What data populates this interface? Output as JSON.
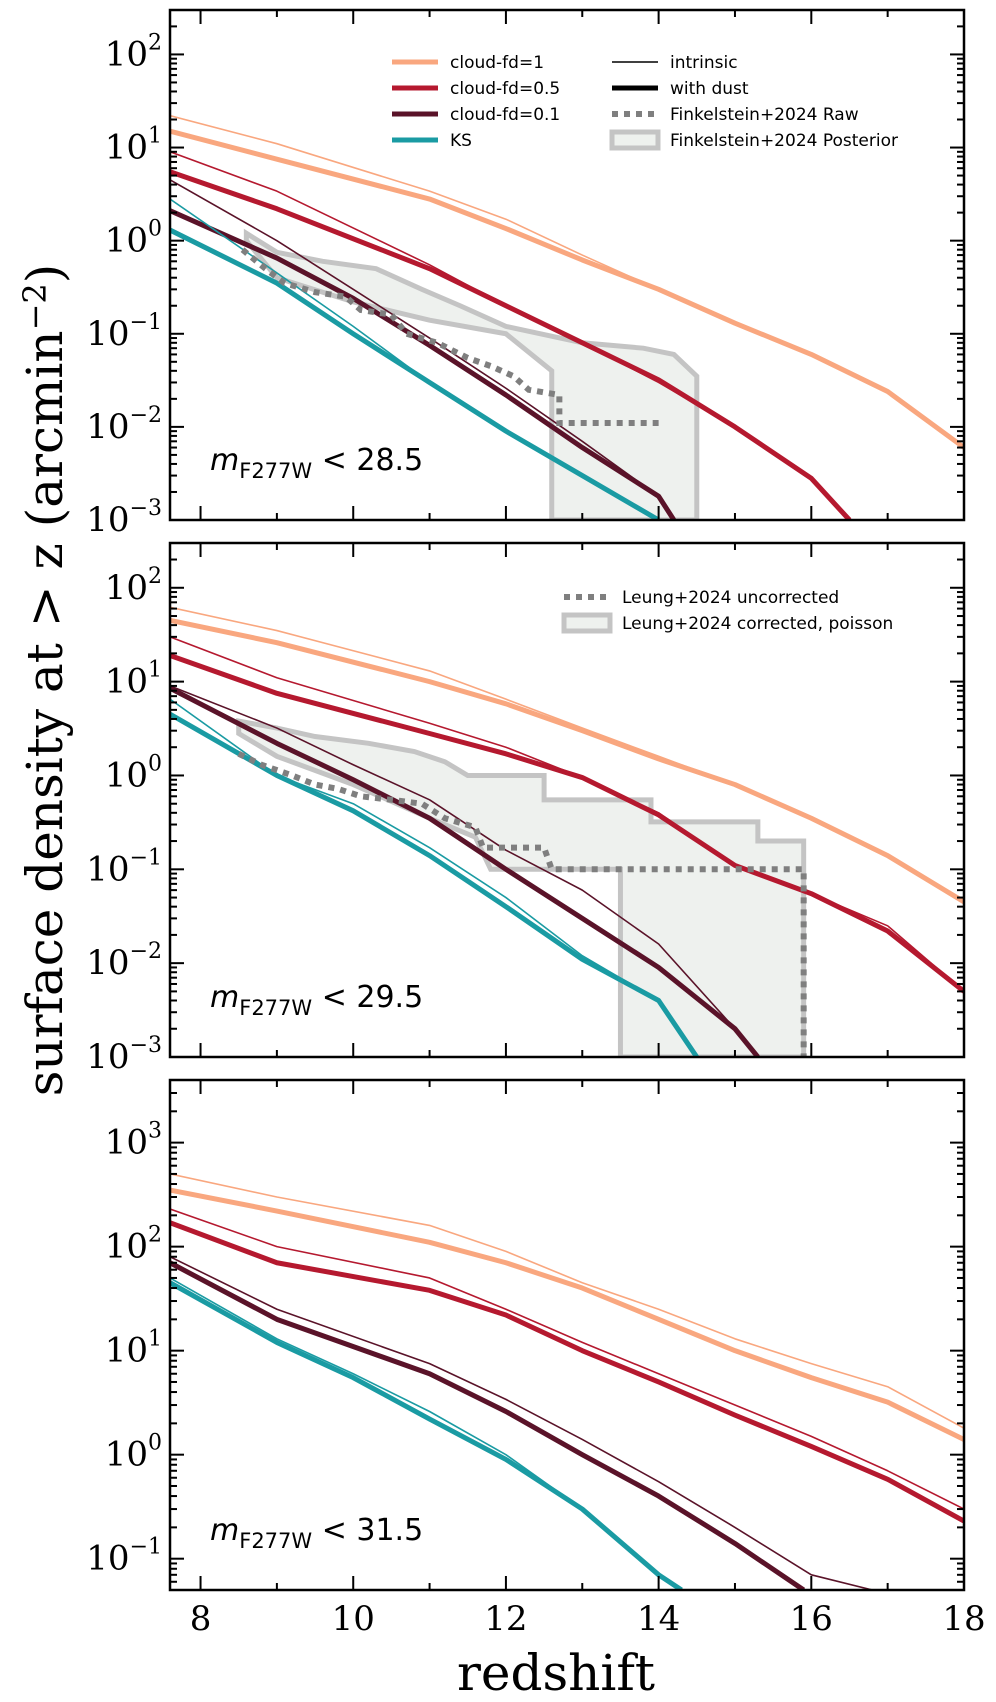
{
  "figure": {
    "xlabel": "redshift",
    "ylabel": "surface density at > z (arcmin",
    "ylabel_exp": "−2",
    "ylabel_end": ")"
  },
  "colors": {
    "cloud_fd_1": "#f9a77f",
    "cloud_fd_05": "#b5192f",
    "cloud_fd_01": "#5a1329",
    "ks": "#1a9ba3",
    "obs_dotted": "#7f7f7f",
    "obs_band_edge": "#c4c4c4",
    "obs_band_fill": "#eef1ee"
  },
  "legend": {
    "items": [
      {
        "label": "cloud-fd=1",
        "style": "thick",
        "color": "#f9a77f"
      },
      {
        "label": "cloud-fd=0.5",
        "style": "thick",
        "color": "#b5192f"
      },
      {
        "label": "cloud-fd=0.1",
        "style": "thick",
        "color": "#5a1329"
      },
      {
        "label": "KS",
        "style": "thick",
        "color": "#1a9ba3"
      },
      {
        "label": "intrinsic",
        "style": "thin",
        "color": "#000000"
      },
      {
        "label": "with dust",
        "style": "thick",
        "color": "#000000"
      },
      {
        "label": "Finkelstein+2024 Raw",
        "style": "dotted",
        "color": "#7f7f7f"
      },
      {
        "label": "Finkelstein+2024 Posterior",
        "style": "band",
        "color": "#c4c4c4"
      }
    ],
    "panel2": [
      {
        "label": "Leung+2024 uncorrected",
        "style": "dotted",
        "color": "#7f7f7f"
      },
      {
        "label": "Leung+2024 corrected, poisson",
        "style": "band",
        "color": "#c4c4c4"
      }
    ]
  },
  "chart_data": [
    {
      "type": "line",
      "panel": "top",
      "annotation": {
        "m": "m",
        "sub": "F277W",
        "rest": " < 28.5"
      },
      "xlim": [
        7.6,
        18
      ],
      "ylim": [
        0.001,
        300
      ],
      "yscale": "log",
      "xticks": [
        8,
        10,
        12,
        14,
        16,
        18
      ],
      "yticks": [
        {
          "v": 0.001,
          "exp": "−3"
        },
        {
          "v": 0.01,
          "exp": "−2"
        },
        {
          "v": 0.1,
          "exp": "−1"
        },
        {
          "v": 1,
          "exp": "0"
        },
        {
          "v": 10,
          "exp": "1"
        },
        {
          "v": 100,
          "exp": "2"
        }
      ],
      "series": [
        {
          "color_key": "cloud_fd_1",
          "variant": "intrinsic",
          "x": [
            7.6,
            9,
            11,
            12,
            13,
            14,
            15,
            16,
            17,
            18
          ],
          "y": [
            22,
            11,
            3.4,
            1.7,
            0.7,
            0.3,
            0.13,
            0.06,
            0.024,
            0.006
          ]
        },
        {
          "color_key": "cloud_fd_1",
          "variant": "with dust",
          "x": [
            7.6,
            9,
            11,
            12,
            13,
            14,
            15,
            16,
            17,
            18
          ],
          "y": [
            15,
            7.5,
            2.8,
            1.35,
            0.62,
            0.3,
            0.13,
            0.06,
            0.024,
            0.006
          ]
        },
        {
          "color_key": "cloud_fd_05",
          "variant": "intrinsic",
          "x": [
            7.6,
            9,
            11,
            12,
            13,
            14,
            15,
            16,
            16.5
          ],
          "y": [
            9,
            3.4,
            0.55,
            0.2,
            0.08,
            0.03,
            0.01,
            0.0028,
            0.001
          ]
        },
        {
          "color_key": "cloud_fd_05",
          "variant": "with dust",
          "x": [
            7.6,
            9,
            11,
            12,
            13,
            14,
            15,
            16,
            16.5
          ],
          "y": [
            5.5,
            2.2,
            0.5,
            0.2,
            0.08,
            0.032,
            0.01,
            0.0028,
            0.001
          ]
        },
        {
          "color_key": "cloud_fd_01",
          "variant": "intrinsic",
          "x": [
            7.6,
            9,
            10,
            11,
            12,
            13,
            14,
            14.2
          ],
          "y": [
            4.5,
            1.0,
            0.3,
            0.09,
            0.026,
            0.007,
            0.0018,
            0.001
          ]
        },
        {
          "color_key": "cloud_fd_01",
          "variant": "with dust",
          "x": [
            7.6,
            9,
            10,
            11,
            12,
            13,
            14,
            14.2
          ],
          "y": [
            2.1,
            0.65,
            0.24,
            0.075,
            0.022,
            0.006,
            0.0018,
            0.001
          ]
        },
        {
          "color_key": "ks",
          "variant": "intrinsic",
          "x": [
            7.6,
            9,
            10,
            11,
            12,
            13,
            14
          ],
          "y": [
            2.8,
            0.45,
            0.12,
            0.03,
            0.009,
            0.003,
            0.001
          ]
        },
        {
          "color_key": "ks",
          "variant": "with dust",
          "x": [
            7.6,
            9,
            10,
            11,
            12,
            13,
            14
          ],
          "y": [
            1.3,
            0.35,
            0.1,
            0.03,
            0.009,
            0.003,
            0.001
          ]
        }
      ],
      "obs_dotted": {
        "x": [
          8.55,
          8.85,
          9.1,
          9.5,
          9.9,
          10.1,
          10.5,
          10.7,
          11.1,
          11.5,
          11.8,
          12.1,
          12.3,
          12.7,
          12.7,
          14.0
        ],
        "y": [
          0.8,
          0.5,
          0.35,
          0.28,
          0.25,
          0.18,
          0.16,
          0.1,
          0.08,
          0.055,
          0.045,
          0.035,
          0.025,
          0.022,
          0.011,
          0.011
        ]
      },
      "obs_band": {
        "upper": {
          "x": [
            8.6,
            9.0,
            9.6,
            10.3,
            10.9,
            11.4,
            12.0,
            13.0,
            13.8,
            14.2,
            14.5,
            14.5
          ],
          "y": [
            1.2,
            0.75,
            0.6,
            0.5,
            0.3,
            0.2,
            0.12,
            0.08,
            0.07,
            0.06,
            0.035,
            0.001
          ]
        },
        "lower": {
          "x": [
            8.6,
            9.0,
            10.0,
            11.0,
            12.0,
            12.6,
            12.6
          ],
          "y": [
            1.0,
            0.4,
            0.22,
            0.14,
            0.1,
            0.04,
            0.001
          ]
        }
      }
    },
    {
      "type": "line",
      "panel": "middle",
      "annotation": {
        "m": "m",
        "sub": "F277W",
        "rest": " < 29.5"
      },
      "xlim": [
        7.6,
        18
      ],
      "ylim": [
        0.001,
        300
      ],
      "yscale": "log",
      "xticks": [
        8,
        10,
        12,
        14,
        16,
        18
      ],
      "yticks": [
        {
          "v": 0.001,
          "exp": "−3"
        },
        {
          "v": 0.01,
          "exp": "−2"
        },
        {
          "v": 0.1,
          "exp": "−1"
        },
        {
          "v": 1,
          "exp": "0"
        },
        {
          "v": 10,
          "exp": "1"
        },
        {
          "v": 100,
          "exp": "2"
        }
      ],
      "series": [
        {
          "color_key": "cloud_fd_1",
          "variant": "intrinsic",
          "x": [
            7.6,
            9,
            11,
            12,
            13,
            14,
            15,
            16,
            17,
            18
          ],
          "y": [
            62,
            35,
            13,
            6.5,
            3.2,
            1.6,
            0.8,
            0.35,
            0.14,
            0.045
          ]
        },
        {
          "color_key": "cloud_fd_1",
          "variant": "with dust",
          "x": [
            7.6,
            9,
            11,
            12,
            13,
            14,
            15,
            16,
            17,
            18
          ],
          "y": [
            45,
            26,
            10,
            5.8,
            3.0,
            1.5,
            0.8,
            0.35,
            0.14,
            0.045
          ]
        },
        {
          "color_key": "cloud_fd_05",
          "variant": "intrinsic",
          "x": [
            7.6,
            9,
            11,
            12,
            13,
            14,
            15,
            16,
            17,
            18
          ],
          "y": [
            30,
            11,
            3.6,
            2.0,
            0.95,
            0.4,
            0.11,
            0.055,
            0.025,
            0.005
          ]
        },
        {
          "color_key": "cloud_fd_05",
          "variant": "with dust",
          "x": [
            7.6,
            9,
            11,
            12,
            13,
            14,
            15,
            16,
            17,
            18
          ],
          "y": [
            19,
            7.5,
            2.8,
            1.7,
            0.95,
            0.38,
            0.11,
            0.055,
            0.022,
            0.005
          ]
        },
        {
          "color_key": "cloud_fd_01",
          "variant": "intrinsic",
          "x": [
            7.6,
            9,
            10,
            11,
            12,
            13,
            14,
            15,
            15.3
          ],
          "y": [
            9,
            3.2,
            1.3,
            0.55,
            0.16,
            0.06,
            0.016,
            0.002,
            0.001
          ]
        },
        {
          "color_key": "cloud_fd_01",
          "variant": "with dust",
          "x": [
            7.6,
            9,
            10,
            11,
            12,
            13,
            14,
            15,
            15.3
          ],
          "y": [
            8.5,
            2.2,
            0.9,
            0.35,
            0.1,
            0.03,
            0.009,
            0.002,
            0.001
          ]
        },
        {
          "color_key": "ks",
          "variant": "intrinsic",
          "x": [
            7.6,
            9,
            10,
            11,
            12,
            13,
            14,
            14.5
          ],
          "y": [
            6.5,
            1.0,
            0.5,
            0.17,
            0.05,
            0.012,
            0.004,
            0.001
          ]
        },
        {
          "color_key": "ks",
          "variant": "with dust",
          "x": [
            7.6,
            9,
            10,
            11,
            12,
            13,
            14,
            14.5
          ],
          "y": [
            4.5,
            1.0,
            0.42,
            0.14,
            0.04,
            0.011,
            0.004,
            0.001
          ]
        }
      ],
      "obs_dotted": {
        "x": [
          8.5,
          8.8,
          9.2,
          9.5,
          9.8,
          10.1,
          10.5,
          10.9,
          11.2,
          11.6,
          11.7,
          12.5,
          12.6,
          15.9,
          15.9
        ],
        "y": [
          1.7,
          1.3,
          1.0,
          0.8,
          0.72,
          0.6,
          0.55,
          0.5,
          0.35,
          0.28,
          0.17,
          0.17,
          0.1,
          0.1,
          0.001
        ]
      },
      "obs_band": {
        "upper": {
          "x": [
            8.5,
            9.0,
            9.5,
            10.2,
            10.8,
            11.2,
            11.5,
            12.5,
            12.5,
            13.9,
            13.9,
            15.3,
            15.3,
            15.9,
            15.9
          ],
          "y": [
            3.8,
            3.2,
            2.6,
            2.2,
            1.8,
            1.4,
            1.0,
            1.0,
            0.55,
            0.55,
            0.32,
            0.32,
            0.2,
            0.2,
            0.001
          ]
        },
        "lower": {
          "x": [
            8.5,
            9.0,
            10.0,
            11.0,
            11.6,
            11.8,
            13.5,
            13.5
          ],
          "y": [
            2.8,
            1.6,
            0.8,
            0.35,
            0.22,
            0.1,
            0.1,
            0.001
          ]
        }
      }
    },
    {
      "type": "line",
      "panel": "bottom",
      "annotation": {
        "m": "m",
        "sub": "F277W",
        "rest": " < 31.5"
      },
      "xlim": [
        7.6,
        18
      ],
      "ylim": [
        0.05,
        4000
      ],
      "yscale": "log",
      "xticks": [
        8,
        10,
        12,
        14,
        16,
        18
      ],
      "yticks": [
        {
          "v": 0.1,
          "exp": "−1"
        },
        {
          "v": 1,
          "exp": "0"
        },
        {
          "v": 10,
          "exp": "1"
        },
        {
          "v": 100,
          "exp": "2"
        },
        {
          "v": 1000,
          "exp": "3"
        }
      ],
      "xtick_labels": [
        "8",
        "10",
        "12",
        "14",
        "16",
        "18"
      ],
      "series": [
        {
          "color_key": "cloud_fd_1",
          "variant": "intrinsic",
          "x": [
            7.6,
            9,
            11,
            12,
            13,
            14,
            15,
            16,
            17,
            18
          ],
          "y": [
            500,
            300,
            160,
            90,
            45,
            25,
            13,
            7.5,
            4.5,
            1.8
          ]
        },
        {
          "color_key": "cloud_fd_1",
          "variant": "with dust",
          "x": [
            7.6,
            9,
            11,
            12,
            13,
            14,
            15,
            16,
            17,
            18
          ],
          "y": [
            350,
            220,
            110,
            70,
            40,
            20,
            10,
            5.5,
            3.2,
            1.4
          ]
        },
        {
          "color_key": "cloud_fd_05",
          "variant": "intrinsic",
          "x": [
            7.6,
            9,
            11,
            12,
            13,
            14,
            15,
            16,
            17,
            18
          ],
          "y": [
            230,
            100,
            50,
            25,
            12,
            6,
            3.0,
            1.5,
            0.7,
            0.3
          ]
        },
        {
          "color_key": "cloud_fd_05",
          "variant": "with dust",
          "x": [
            7.6,
            9,
            11,
            12,
            13,
            14,
            15,
            16,
            17,
            18
          ],
          "y": [
            170,
            70,
            38,
            22,
            10,
            5,
            2.4,
            1.2,
            0.58,
            0.23
          ]
        },
        {
          "color_key": "cloud_fd_01",
          "variant": "intrinsic",
          "x": [
            7.6,
            9,
            11,
            12,
            13,
            14,
            15,
            16,
            16.8
          ],
          "y": [
            80,
            25,
            7.5,
            3.4,
            1.4,
            0.55,
            0.2,
            0.07,
            0.05
          ]
        },
        {
          "color_key": "cloud_fd_01",
          "variant": "with dust",
          "x": [
            7.6,
            9,
            11,
            12,
            13,
            14,
            15,
            15.9
          ],
          "y": [
            70,
            20,
            6,
            2.6,
            1.0,
            0.4,
            0.14,
            0.05
          ]
        },
        {
          "color_key": "ks",
          "variant": "intrinsic",
          "x": [
            7.6,
            9,
            10,
            11,
            12,
            13,
            14,
            14.3
          ],
          "y": [
            50,
            13,
            6,
            2.6,
            1.0,
            0.3,
            0.07,
            0.05
          ]
        },
        {
          "color_key": "ks",
          "variant": "with dust",
          "x": [
            7.6,
            9,
            10,
            11,
            12,
            13,
            14,
            14.3
          ],
          "y": [
            45,
            12,
            5.5,
            2.2,
            0.9,
            0.3,
            0.07,
            0.05
          ]
        }
      ]
    }
  ]
}
